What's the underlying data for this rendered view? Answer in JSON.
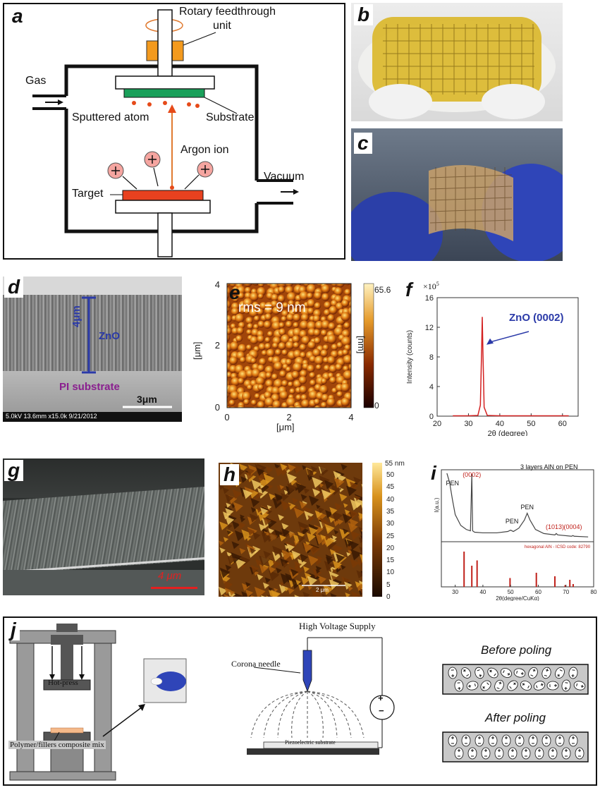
{
  "panels": {
    "a": {
      "letter": "a",
      "rotary": "Rotary feedthrough",
      "unit": "unit",
      "gas": "Gas",
      "sputtered": "Sputtered atom",
      "substrate": "Substrate",
      "argon": "Argon ion",
      "vacuum": "Vacuum",
      "target": "Target"
    },
    "b": {
      "letter": "b"
    },
    "c": {
      "letter": "c"
    },
    "d": {
      "letter": "d",
      "thickness": "4μm",
      "zno": "ZnO",
      "pi": "PI substrate",
      "scale": "3μm",
      "footer": "5.0kV 13.6mm x15.0k 9/21/2012"
    },
    "e": {
      "letter": "e",
      "rms": "rms = 9 nm",
      "xlabel": "[μm]",
      "ylabel": "[μm]",
      "cbar_label": "[nm]",
      "cbar_max": "65.6",
      "cbar_min": "0"
    },
    "f": {
      "letter": "f",
      "multiplier": "×10",
      "exponent": "5",
      "annotation": "ZnO (0002)"
    },
    "g": {
      "letter": "g",
      "scale": "4 μm"
    },
    "h": {
      "letter": "h",
      "scale": "2 μm",
      "cbar_unit": "55 nm",
      "cbar_ticks": [
        "50",
        "45",
        "40",
        "35",
        "30",
        "25",
        "20",
        "15",
        "10",
        "5",
        "0"
      ]
    },
    "i": {
      "letter": "i",
      "legend": "3 layers AlN on PEN",
      "peaks": [
        "PEN",
        "(0002)",
        "PEN",
        "PEN",
        "(1013)",
        "(0004)"
      ],
      "ref_label": "hexagonal AlN - ICSD code: 82790",
      "ylabel": "I(a.u.)",
      "xlabel": "2θ(degree/CuKα)"
    },
    "j": {
      "letter": "j",
      "hot_press": "Hot-press",
      "composite": "Polymer/fillers composite mix",
      "hv": "High Voltage Supply",
      "needle": "Corona needle",
      "piezo": "Piezoelectric substrate",
      "before": "Before poling",
      "after": "After poling",
      "plus": "+",
      "minus": "−"
    }
  },
  "chart_data": [
    {
      "type": "heatmap",
      "panel": "e",
      "title": "rms = 9 nm",
      "xlabel": "[μm]",
      "ylabel": "[μm]",
      "xlim": [
        0,
        4
      ],
      "ylim": [
        0,
        4
      ],
      "xticks": [
        "0",
        "2",
        "4"
      ],
      "yticks": [
        "0",
        "2",
        "4"
      ],
      "colorbar": {
        "label": "[nm]",
        "min": 0,
        "max": 65.6,
        "ticks": [
          "0",
          "65.6"
        ]
      }
    },
    {
      "type": "line",
      "panel": "f",
      "xlabel": "2θ (degree)",
      "ylabel": "Intensity (counts)",
      "xlim": [
        20,
        65
      ],
      "ylim": [
        0,
        16
      ],
      "xticks": [
        "20",
        "30",
        "40",
        "50",
        "60"
      ],
      "yticks": [
        "0",
        "4",
        "8",
        "12",
        "16"
      ],
      "multiplier": "×10^5",
      "x": [
        25,
        30,
        33,
        33.8,
        34.2,
        34.4,
        34.6,
        35.0,
        36,
        40,
        50,
        60,
        62
      ],
      "y": [
        0.05,
        0.05,
        0.1,
        1.5,
        9.0,
        13.4,
        9.0,
        1.2,
        0.1,
        0.05,
        0.05,
        0.05,
        0.05
      ],
      "annotations": [
        {
          "text": "ZnO (0002)",
          "x": 34.4,
          "y": 13.4
        }
      ]
    },
    {
      "type": "line",
      "panel": "i",
      "title": "3 layers AlN on PEN",
      "xlabel": "2θ(degree/CuKα)",
      "ylabel": "I(a.u.)",
      "xlim": [
        25,
        80
      ],
      "xticks": [
        "30",
        "40",
        "50",
        "60",
        "70",
        "80"
      ],
      "x": [
        27,
        28,
        29,
        30,
        32,
        34,
        35.5,
        36.0,
        36.3,
        37,
        40,
        45,
        49,
        50,
        51,
        53,
        55,
        56,
        57,
        59,
        62,
        66,
        66.5,
        67,
        72,
        72.5,
        73,
        78
      ],
      "y": [
        99,
        85,
        60,
        38,
        22,
        16,
        14,
        98,
        14,
        12,
        11,
        11,
        13,
        15,
        13,
        18,
        30,
        40,
        30,
        16,
        10,
        8,
        10,
        8,
        6,
        7,
        6,
        5
      ],
      "annotations": [
        {
          "text": "PEN",
          "x": 29
        },
        {
          "text": "(0002)",
          "x": 36
        },
        {
          "text": "PEN",
          "x": 50.5
        },
        {
          "text": "PEN",
          "x": 56
        },
        {
          "text": "(1013)",
          "x": 66
        },
        {
          "text": "(0004)",
          "x": 72.5
        }
      ],
      "reference": {
        "label": "hexagonal AlN - ICSD code: 82790",
        "positions": [
          33.2,
          36.0,
          37.9,
          49.8,
          59.3,
          66.0,
          69.7,
          71.4,
          72.6
        ],
        "heights": [
          100,
          60,
          75,
          25,
          40,
          30,
          5,
          20,
          8
        ]
      }
    }
  ]
}
